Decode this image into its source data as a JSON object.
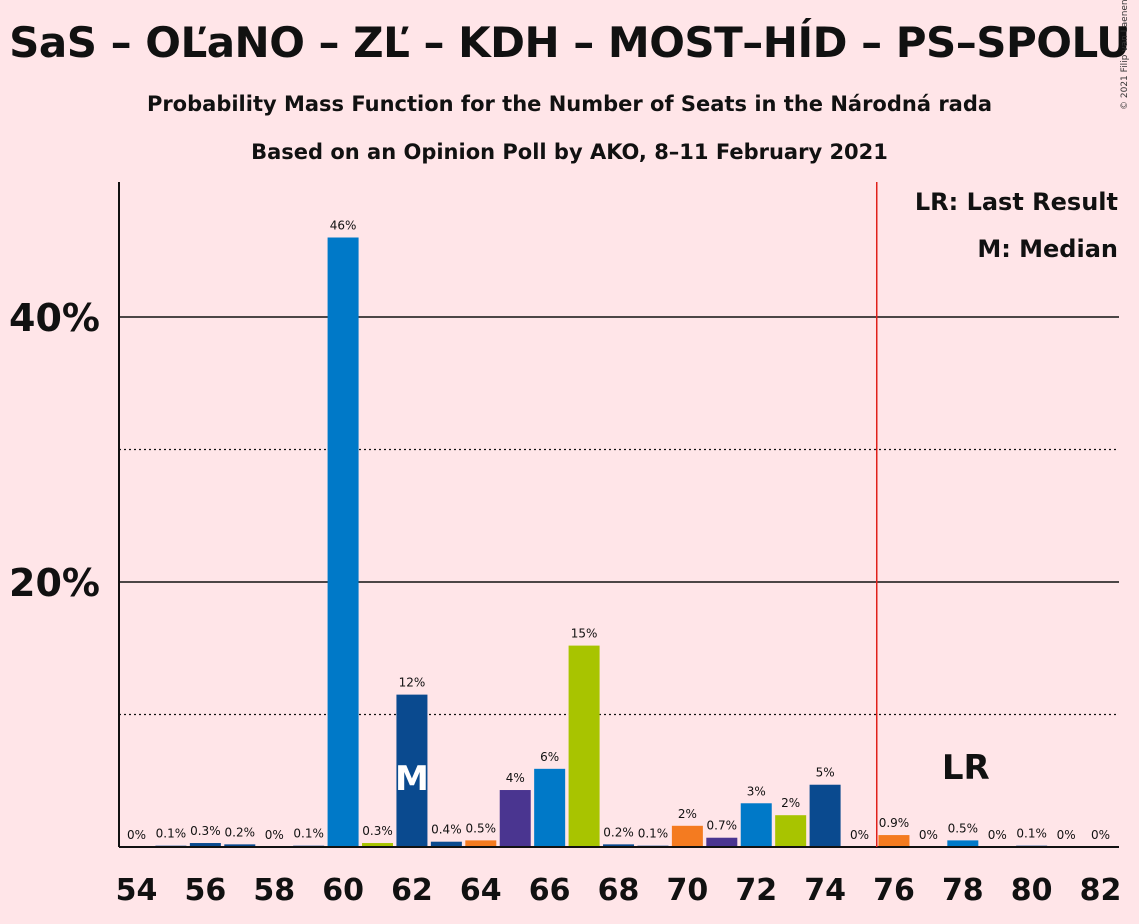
{
  "title": "SaS – OĽaNO – ZĽ – KDH – MOST–HÍD – PS–SPOLU",
  "subtitle1": "Probability Mass Function for the Number of Seats in the Národná rada",
  "subtitle2": "Based on an Opinion Poll by AKO, 8–11 February 2021",
  "copyright": "© 2021 Filip van Laenen",
  "legend": {
    "lr": "LR: Last Result",
    "m": "M: Median"
  },
  "markers": {
    "median_label": "M",
    "median_seat": 62,
    "last_result_label": "LR",
    "last_result_seat": 78,
    "majority_line_seat": 75.5
  },
  "colors": {
    "red_line": "#E0201B",
    "navy": "#0A4A8F",
    "blue": "#0079C8",
    "green": "#A8C400",
    "purple": "#4A3590",
    "orange": "#F47B20"
  },
  "chart_data": {
    "type": "bar",
    "ylim": [
      0,
      50
    ],
    "y_ticks": [
      {
        "value": 20,
        "label": "20%"
      },
      {
        "value": 40,
        "label": "40%"
      }
    ],
    "y_dotted": [
      10,
      30
    ],
    "x_ticks": [
      54,
      56,
      58,
      60,
      62,
      64,
      66,
      68,
      70,
      72,
      74,
      76,
      78,
      80,
      82
    ],
    "bars": [
      {
        "seat": 54,
        "value": 0,
        "label": "0%",
        "color": "#0A4A8F"
      },
      {
        "seat": 55,
        "value": 0.1,
        "label": "0.1%",
        "color": "#0A4A8F"
      },
      {
        "seat": 56,
        "value": 0.3,
        "label": "0.3%",
        "color": "#0A4A8F"
      },
      {
        "seat": 57,
        "value": 0.2,
        "label": "0.2%",
        "color": "#0A4A8F"
      },
      {
        "seat": 58,
        "value": 0,
        "label": "0%",
        "color": "#0A4A8F"
      },
      {
        "seat": 59,
        "value": 0.1,
        "label": "0.1%",
        "color": "#0A4A8F"
      },
      {
        "seat": 60,
        "value": 46,
        "label": "46%",
        "color": "#0079C8"
      },
      {
        "seat": 61,
        "value": 0.3,
        "label": "0.3%",
        "color": "#A8C400"
      },
      {
        "seat": 62,
        "value": 11.5,
        "label": "12%",
        "color": "#0A4A8F"
      },
      {
        "seat": 63,
        "value": 0.4,
        "label": "0.4%",
        "color": "#0A4A8F"
      },
      {
        "seat": 64,
        "value": 0.5,
        "label": "0.5%",
        "color": "#F47B20"
      },
      {
        "seat": 65,
        "value": 4.3,
        "label": "4%",
        "color": "#4A3590"
      },
      {
        "seat": 66,
        "value": 5.9,
        "label": "6%",
        "color": "#0079C8"
      },
      {
        "seat": 67,
        "value": 15.2,
        "label": "15%",
        "color": "#A8C400"
      },
      {
        "seat": 68,
        "value": 0.2,
        "label": "0.2%",
        "color": "#0A4A8F"
      },
      {
        "seat": 69,
        "value": 0.1,
        "label": "0.1%",
        "color": "#0A4A8F"
      },
      {
        "seat": 70,
        "value": 1.6,
        "label": "2%",
        "color": "#F47B20"
      },
      {
        "seat": 71,
        "value": 0.7,
        "label": "0.7%",
        "color": "#4A3590"
      },
      {
        "seat": 72,
        "value": 3.3,
        "label": "3%",
        "color": "#0079C8"
      },
      {
        "seat": 73,
        "value": 2.4,
        "label": "2%",
        "color": "#A8C400"
      },
      {
        "seat": 74,
        "value": 4.7,
        "label": "5%",
        "color": "#0A4A8F"
      },
      {
        "seat": 75,
        "value": 0,
        "label": "0%",
        "color": "#0A4A8F"
      },
      {
        "seat": 76,
        "value": 0.9,
        "label": "0.9%",
        "color": "#F47B20"
      },
      {
        "seat": 77,
        "value": 0,
        "label": "0%",
        "color": "#0A4A8F"
      },
      {
        "seat": 78,
        "value": 0.5,
        "label": "0.5%",
        "color": "#0079C8"
      },
      {
        "seat": 79,
        "value": 0,
        "label": "0%",
        "color": "#0A4A8F"
      },
      {
        "seat": 80,
        "value": 0.1,
        "label": "0.1%",
        "color": "#0A4A8F"
      },
      {
        "seat": 81,
        "value": 0,
        "label": "0%",
        "color": "#0A4A8F"
      },
      {
        "seat": 82,
        "value": 0,
        "label": "0%",
        "color": "#0A4A8F"
      }
    ]
  }
}
